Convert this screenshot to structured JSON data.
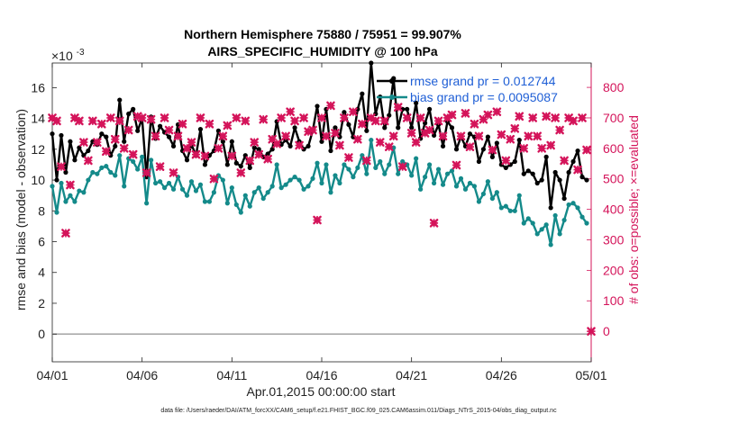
{
  "chart_data": {
    "type": "line",
    "title": "Northern Hemisphere 75880 / 75951 = 99.907%",
    "subtitle": "AIRS_SPECIFIC_HUMIDITY @ 100 hPa",
    "ylabel": "rmse and bias (model - observation)",
    "y2label": "# of obs: o=possible; ×=evaluated",
    "xlabel": "Apr.01,2015 00:00:00 start",
    "footer": "data file: /Users/raeder/DAI/ATM_forcXX/CAM6_setup/f.e21.FHIST_BGC.f09_025.CAM6assim.011/Diags_NTrS_2015-04/obs_diag_output.nc",
    "y_exponent": "×10",
    "y_exponent_power": "-3",
    "ylim": [
      -1.8,
      17.6
    ],
    "y2lim": [
      -100,
      880
    ],
    "xlim": [
      0,
      30
    ],
    "yticks": [
      0,
      2,
      4,
      6,
      8,
      10,
      12,
      14,
      16
    ],
    "y2ticks": [
      0,
      100,
      200,
      300,
      400,
      500,
      600,
      700,
      800
    ],
    "xticks": [
      0,
      5,
      10,
      15,
      20,
      25,
      30
    ],
    "xtick_labels": [
      "04/01",
      "04/06",
      "04/11",
      "04/16",
      "04/21",
      "04/26",
      "05/01"
    ],
    "grid": false,
    "legend_position": "top-right",
    "zero_line": 0,
    "series": [
      {
        "name": "rmse grand pr = 0.012744",
        "color": "#000000",
        "axis": "left",
        "x": [
          0.0,
          0.25,
          0.5,
          0.75,
          1.0,
          1.25,
          1.5,
          1.75,
          2.0,
          2.25,
          2.5,
          2.75,
          3.0,
          3.25,
          3.5,
          3.75,
          4.0,
          4.25,
          4.5,
          4.75,
          5.0,
          5.25,
          5.5,
          5.75,
          6.0,
          6.25,
          6.5,
          6.75,
          7.0,
          7.25,
          7.5,
          7.75,
          8.0,
          8.25,
          8.5,
          8.75,
          9.0,
          9.25,
          9.5,
          9.75,
          10.0,
          10.25,
          10.5,
          10.75,
          11.0,
          11.25,
          11.5,
          11.75,
          12.0,
          12.25,
          12.5,
          12.75,
          13.0,
          13.25,
          13.5,
          13.75,
          14.0,
          14.25,
          14.5,
          14.75,
          15.0,
          15.25,
          15.5,
          15.75,
          16.0,
          16.25,
          16.5,
          16.75,
          17.0,
          17.25,
          17.5,
          17.75,
          18.0,
          18.25,
          18.5,
          18.75,
          19.0,
          19.25,
          19.5,
          19.75,
          20.0,
          20.25,
          20.5,
          20.75,
          21.0,
          21.25,
          21.5,
          21.75,
          22.0,
          22.25,
          22.5,
          22.75,
          23.0,
          23.25,
          23.5,
          23.75,
          24.0,
          24.25,
          24.5,
          24.75,
          25.0,
          25.25,
          25.5,
          25.75,
          26.0,
          26.25,
          26.5,
          26.75,
          27.0,
          27.25,
          27.5,
          27.75,
          28.0,
          28.25,
          28.5,
          28.75,
          29.0,
          29.25,
          29.5,
          29.75
        ],
        "values": [
          13.0,
          10.0,
          12.9,
          10.5,
          12.5,
          11.3,
          12.1,
          11.6,
          11.9,
          12.5,
          12.3,
          13.0,
          12.8,
          11.6,
          12.2,
          15.2,
          12.5,
          14.3,
          14.6,
          13.2,
          14.0,
          10.2,
          14.1,
          12.7,
          13.5,
          13.1,
          12.8,
          12.2,
          13.6,
          11.9,
          11.3,
          12.3,
          11.6,
          13.3,
          11.0,
          11.6,
          11.9,
          13.2,
          12.5,
          11.0,
          12.5,
          11.1,
          10.9,
          11.6,
          10.8,
          12.1,
          12.0,
          11.5,
          11.7,
          12.0,
          13.8,
          12.3,
          12.6,
          12.2,
          13.4,
          12.5,
          12.0,
          12.2,
          13.2,
          14.8,
          12.5,
          14.6,
          11.9,
          13.4,
          12.8,
          14.4,
          13.6,
          12.8,
          14.6,
          15.6,
          13.2,
          17.6,
          14.3,
          15.4,
          13.4,
          14.2,
          16.6,
          13.4,
          14.6,
          14.6,
          13.4,
          15.0,
          12.7,
          13.7,
          14.6,
          12.9,
          13.6,
          12.2,
          13.8,
          13.4,
          12.0,
          12.8,
          12.2,
          13.0,
          12.8,
          11.2,
          12.0,
          12.8,
          11.5,
          12.4,
          11.0,
          10.8,
          11.0,
          11.2,
          12.6,
          10.4,
          10.6,
          10.4,
          9.8,
          10.0,
          11.5,
          8.2,
          10.5,
          10.0,
          8.8,
          10.5,
          11.2,
          11.9,
          10.2,
          10.0
        ]
      },
      {
        "name": "bias grand pr = 0.0095087",
        "color": "#148a8a",
        "axis": "left",
        "x": [
          0.0,
          0.25,
          0.5,
          0.75,
          1.0,
          1.25,
          1.5,
          1.75,
          2.0,
          2.25,
          2.5,
          2.75,
          3.0,
          3.25,
          3.5,
          3.75,
          4.0,
          4.25,
          4.5,
          4.75,
          5.0,
          5.25,
          5.5,
          5.75,
          6.0,
          6.25,
          6.5,
          6.75,
          7.0,
          7.25,
          7.5,
          7.75,
          8.0,
          8.25,
          8.5,
          8.75,
          9.0,
          9.25,
          9.5,
          9.75,
          10.0,
          10.25,
          10.5,
          10.75,
          11.0,
          11.25,
          11.5,
          11.75,
          12.0,
          12.25,
          12.5,
          12.75,
          13.0,
          13.25,
          13.5,
          13.75,
          14.0,
          14.25,
          14.5,
          14.75,
          15.0,
          15.25,
          15.5,
          15.75,
          16.0,
          16.25,
          16.5,
          16.75,
          17.0,
          17.25,
          17.5,
          17.75,
          18.0,
          18.25,
          18.5,
          18.75,
          19.0,
          19.25,
          19.5,
          19.75,
          20.0,
          20.25,
          20.5,
          20.75,
          21.0,
          21.25,
          21.5,
          21.75,
          22.0,
          22.25,
          22.5,
          22.75,
          23.0,
          23.25,
          23.5,
          23.75,
          24.0,
          24.25,
          24.5,
          24.75,
          25.0,
          25.25,
          25.5,
          25.75,
          26.0,
          26.25,
          26.5,
          26.75,
          27.0,
          27.25,
          27.5,
          27.75,
          28.0,
          28.25,
          28.5,
          28.75,
          29.0,
          29.25,
          29.5,
          29.75
        ],
        "values": [
          9.6,
          7.9,
          9.8,
          8.6,
          9.0,
          8.6,
          9.3,
          9.2,
          10.0,
          10.5,
          10.4,
          10.8,
          10.9,
          10.5,
          10.3,
          11.6,
          9.6,
          11.4,
          11.2,
          10.7,
          11.5,
          8.5,
          11.3,
          9.8,
          9.9,
          9.5,
          9.8,
          9.4,
          10.2,
          9.4,
          9.0,
          9.9,
          9.3,
          9.7,
          8.6,
          8.6,
          9.2,
          10.3,
          10.0,
          8.5,
          9.5,
          8.4,
          7.9,
          9.0,
          8.3,
          9.2,
          9.5,
          8.8,
          9.2,
          9.6,
          11.0,
          9.5,
          9.7,
          10.0,
          10.2,
          10.0,
          9.4,
          9.6,
          10.1,
          11.1,
          9.8,
          11.0,
          9.2,
          10.3,
          9.8,
          11.0,
          10.7,
          10.2,
          10.8,
          11.6,
          10.4,
          12.6,
          10.8,
          11.2,
          10.4,
          11.0,
          12.1,
          10.4,
          11.2,
          11.0,
          10.3,
          11.4,
          9.4,
          10.2,
          11.0,
          9.8,
          10.7,
          9.7,
          10.4,
          10.6,
          9.6,
          10.1,
          9.4,
          9.8,
          9.6,
          8.6,
          9.1,
          9.9,
          8.8,
          9.2,
          8.2,
          8.3,
          8.0,
          8.0,
          9.0,
          7.2,
          7.5,
          7.2,
          6.5,
          6.8,
          7.1,
          5.8,
          7.7,
          6.5,
          7.4,
          8.4,
          8.5,
          8.2,
          7.6,
          7.2
        ]
      },
      {
        "name": "# obs possible",
        "color": "#d4145a",
        "axis": "right",
        "x": [
          0.0,
          0.25,
          0.5,
          0.75,
          1.0,
          1.25,
          1.5,
          1.75,
          2.0,
          2.25,
          2.5,
          2.75,
          3.0,
          3.25,
          3.5,
          3.75,
          4.0,
          4.25,
          4.5,
          4.75,
          5.0,
          5.25,
          5.5,
          5.75,
          6.0,
          6.25,
          6.5,
          6.75,
          7.0,
          7.25,
          7.5,
          7.75,
          8.0,
          8.25,
          8.5,
          8.75,
          9.0,
          9.25,
          9.5,
          9.75,
          10.0,
          10.25,
          10.5,
          10.75,
          11.0,
          11.25,
          11.5,
          11.75,
          12.0,
          12.25,
          12.5,
          12.75,
          13.0,
          13.25,
          13.5,
          13.75,
          14.0,
          14.25,
          14.5,
          14.75,
          15.0,
          15.25,
          15.5,
          15.75,
          16.0,
          16.25,
          16.5,
          16.75,
          17.0,
          17.25,
          17.5,
          17.75,
          18.0,
          18.25,
          18.5,
          18.75,
          19.0,
          19.25,
          19.5,
          19.75,
          20.0,
          20.25,
          20.5,
          20.75,
          21.0,
          21.25,
          21.5,
          21.75,
          22.0,
          22.25,
          22.5,
          22.75,
          23.0,
          23.25,
          23.5,
          23.75,
          24.0,
          24.25,
          24.5,
          24.75,
          25.0,
          25.25,
          25.5,
          25.75,
          26.0,
          26.25,
          26.5,
          26.75,
          27.0,
          27.25,
          27.5,
          27.75,
          28.0,
          28.25,
          28.5,
          28.75,
          29.0,
          29.25,
          29.5,
          29.75
        ],
        "values": [
          700,
          690,
          540,
          322,
          480,
          700,
          690,
          620,
          560,
          690,
          620,
          680,
          590,
          700,
          630,
          690,
          600,
          660,
          580,
          705,
          700,
          520,
          695,
          640,
          540,
          700,
          660,
          520,
          640,
          680,
          600,
          620,
          580,
          700,
          575,
          680,
          500,
          600,
          640,
          675,
          575,
          700,
          520,
          690,
          560,
          620,
          580,
          695,
          565,
          630,
          615,
          700,
          640,
          720,
          690,
          610,
          700,
          655,
          660,
          365,
          700,
          640,
          740,
          650,
          610,
          700,
          570,
          720,
          630,
          680,
          560,
          700,
          690,
          620,
          690,
          605,
          640,
          735,
          540,
          700,
          650,
          620,
          700,
          650,
          660,
          355,
          690,
          640,
          700,
          710,
          545,
          640,
          715,
          605,
          680,
          640,
          695,
          710,
          595,
          720,
          645,
          560,
          630,
          665,
          705,
          600,
          640,
          700,
          640,
          600,
          705,
          610,
          700,
          660,
          560,
          700,
          690,
          530,
          700,
          595
        ]
      },
      {
        "name": "# obs evaluated",
        "color": "#d4145a",
        "axis": "right",
        "x": [
          0.0,
          0.25,
          0.5,
          0.75,
          1.0,
          1.25,
          1.5,
          1.75,
          2.0,
          2.25,
          2.5,
          2.75,
          3.0,
          3.25,
          3.5,
          3.75,
          4.0,
          4.25,
          4.5,
          4.75,
          5.0,
          5.25,
          5.5,
          5.75,
          6.0,
          6.25,
          6.5,
          6.75,
          7.0,
          7.25,
          7.5,
          7.75,
          8.0,
          8.25,
          8.5,
          8.75,
          9.0,
          9.25,
          9.5,
          9.75,
          10.0,
          10.25,
          10.5,
          10.75,
          11.0,
          11.25,
          11.5,
          11.75,
          12.0,
          12.25,
          12.5,
          12.75,
          13.0,
          13.25,
          13.5,
          13.75,
          14.0,
          14.25,
          14.5,
          14.75,
          15.0,
          15.25,
          15.5,
          15.75,
          16.0,
          16.25,
          16.5,
          16.75,
          17.0,
          17.25,
          17.5,
          17.75,
          18.0,
          18.25,
          18.5,
          18.75,
          19.0,
          19.25,
          19.5,
          19.75,
          20.0,
          20.25,
          20.5,
          20.75,
          21.0,
          21.25,
          21.5,
          21.75,
          22.0,
          22.25,
          22.5,
          22.75,
          23.0,
          23.25,
          23.5,
          23.75,
          24.0,
          24.25,
          24.5,
          24.75,
          25.0,
          25.25,
          25.5,
          25.75,
          26.0,
          26.25,
          26.5,
          26.75,
          27.0,
          27.25,
          27.5,
          27.75,
          28.0,
          28.25,
          28.5,
          28.75,
          29.0,
          29.25,
          29.5,
          29.75,
          30.0
        ],
        "values": [
          700,
          690,
          540,
          322,
          480,
          700,
          690,
          620,
          560,
          690,
          620,
          680,
          590,
          700,
          630,
          690,
          600,
          660,
          580,
          705,
          700,
          520,
          695,
          640,
          540,
          700,
          660,
          520,
          640,
          680,
          600,
          620,
          580,
          700,
          575,
          680,
          500,
          600,
          640,
          675,
          575,
          700,
          520,
          690,
          560,
          620,
          580,
          695,
          565,
          630,
          615,
          700,
          640,
          720,
          690,
          610,
          700,
          655,
          660,
          365,
          700,
          640,
          740,
          650,
          610,
          700,
          570,
          720,
          630,
          680,
          560,
          700,
          690,
          620,
          690,
          605,
          640,
          735,
          540,
          700,
          650,
          620,
          700,
          650,
          660,
          355,
          690,
          640,
          700,
          710,
          545,
          640,
          715,
          605,
          680,
          640,
          695,
          710,
          595,
          720,
          645,
          560,
          630,
          665,
          705,
          600,
          640,
          700,
          640,
          600,
          705,
          610,
          700,
          660,
          560,
          700,
          690,
          530,
          700,
          595,
          0
        ]
      }
    ]
  }
}
